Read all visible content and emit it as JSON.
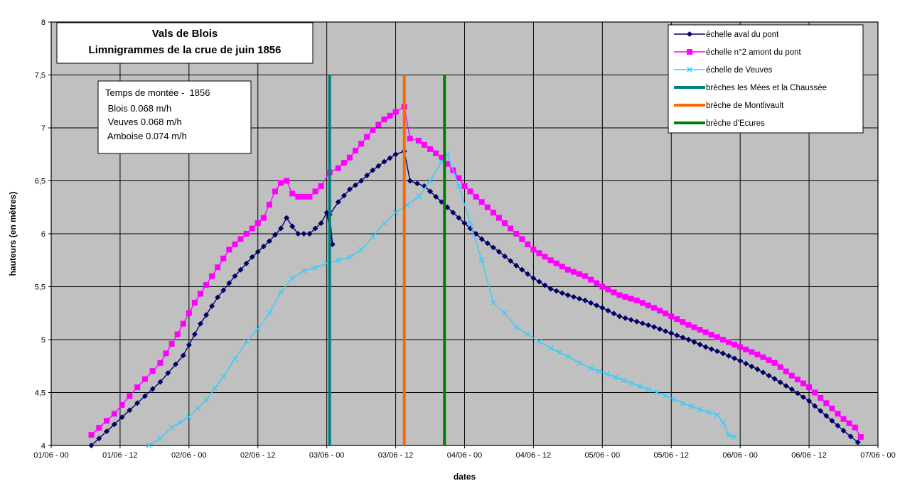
{
  "chart_data": {
    "type": "line",
    "title": [
      "Vals de Blois",
      "Limnigrammes de la crue de juin 1856"
    ],
    "info_box": [
      "Temps de montée -  1856",
      " Blois 0.068 m/h",
      " Veuves 0.068 m/h",
      " Amboise 0.074 m/h"
    ],
    "xlabel": "dates",
    "ylabel": "hauteurs (en mètres)",
    "x_unit": "hours since 01/06 - 00",
    "xlim": [
      0,
      144
    ],
    "ylim": [
      4,
      8
    ],
    "x_tick_labels": [
      "01/06 - 00",
      "01/06 - 12",
      "02/06 - 00",
      "02/06 - 12",
      "03/06 - 00",
      "03/06 - 12",
      "04/06 - 00",
      "04/06 - 12",
      "05/06 - 00",
      "05/06 - 12",
      "06/06 - 00",
      "06/06 - 12",
      "07/06 - 00"
    ],
    "y_tick_labels": [
      "4",
      "4,5",
      "5",
      "5,5",
      "6",
      "6,5",
      "7",
      "7,5",
      "8"
    ],
    "grid": true,
    "legend_position": "top-right",
    "series": [
      {
        "name": "échelle aval du pont",
        "color": "#000066",
        "marker": "diamond",
        "points": [
          [
            7,
            4.0
          ],
          [
            11,
            4.2
          ],
          [
            15,
            4.4
          ],
          [
            19,
            4.6
          ],
          [
            23,
            4.85
          ],
          [
            26,
            5.15
          ],
          [
            29,
            5.4
          ],
          [
            32,
            5.6
          ],
          [
            35,
            5.78
          ],
          [
            38,
            5.93
          ],
          [
            40,
            6.05
          ],
          [
            41,
            6.15
          ],
          [
            42,
            6.07
          ],
          [
            43,
            6.0
          ],
          [
            45,
            6.0
          ],
          [
            47,
            6.1
          ],
          [
            48,
            6.2
          ],
          [
            49,
            5.9
          ],
          [
            48.5,
            6.18
          ],
          [
            50,
            6.3
          ],
          [
            52,
            6.42
          ],
          [
            54,
            6.5
          ],
          [
            56,
            6.6
          ],
          [
            58,
            6.68
          ],
          [
            60,
            6.75
          ],
          [
            61.5,
            6.78
          ],
          [
            62.5,
            6.5
          ],
          [
            65,
            6.45
          ],
          [
            68,
            6.3
          ],
          [
            70,
            6.2
          ],
          [
            72,
            6.1
          ],
          [
            75,
            5.95
          ],
          [
            78,
            5.83
          ],
          [
            81,
            5.7
          ],
          [
            84,
            5.58
          ],
          [
            87,
            5.48
          ],
          [
            90,
            5.42
          ],
          [
            93,
            5.37
          ],
          [
            96,
            5.3
          ],
          [
            99,
            5.22
          ],
          [
            102,
            5.17
          ],
          [
            105,
            5.12
          ],
          [
            108,
            5.06
          ],
          [
            111,
            5.0
          ],
          [
            114,
            4.93
          ],
          [
            117,
            4.87
          ],
          [
            120,
            4.8
          ],
          [
            123,
            4.72
          ],
          [
            126,
            4.63
          ],
          [
            129,
            4.53
          ],
          [
            132,
            4.42
          ],
          [
            135,
            4.28
          ],
          [
            138,
            4.14
          ],
          [
            140.5,
            4.03
          ]
        ]
      },
      {
        "name": "échelle n°2 amont du pont",
        "color": "#ff00ff",
        "marker": "square",
        "points": [
          [
            7,
            4.1
          ],
          [
            11,
            4.3
          ],
          [
            15,
            4.55
          ],
          [
            19,
            4.78
          ],
          [
            22,
            5.05
          ],
          [
            25,
            5.35
          ],
          [
            28,
            5.6
          ],
          [
            31,
            5.85
          ],
          [
            34,
            6.0
          ],
          [
            37,
            6.15
          ],
          [
            39,
            6.4
          ],
          [
            40,
            6.48
          ],
          [
            41,
            6.5
          ],
          [
            42,
            6.38
          ],
          [
            43,
            6.35
          ],
          [
            45,
            6.35
          ],
          [
            47,
            6.45
          ],
          [
            48.5,
            6.58
          ],
          [
            50,
            6.62
          ],
          [
            52,
            6.72
          ],
          [
            54,
            6.85
          ],
          [
            56,
            6.98
          ],
          [
            58,
            7.08
          ],
          [
            60,
            7.15
          ],
          [
            61.5,
            7.2
          ],
          [
            62.5,
            6.9
          ],
          [
            64,
            6.88
          ],
          [
            66,
            6.8
          ],
          [
            68,
            6.72
          ],
          [
            70,
            6.6
          ],
          [
            72,
            6.45
          ],
          [
            75,
            6.3
          ],
          [
            78,
            6.15
          ],
          [
            81,
            6.0
          ],
          [
            84,
            5.85
          ],
          [
            87,
            5.75
          ],
          [
            90,
            5.66
          ],
          [
            93,
            5.6
          ],
          [
            96,
            5.5
          ],
          [
            99,
            5.42
          ],
          [
            102,
            5.37
          ],
          [
            105,
            5.3
          ],
          [
            108,
            5.22
          ],
          [
            111,
            5.14
          ],
          [
            114,
            5.07
          ],
          [
            117,
            5.0
          ],
          [
            120,
            4.93
          ],
          [
            123,
            4.86
          ],
          [
            126,
            4.78
          ],
          [
            129,
            4.66
          ],
          [
            132,
            4.55
          ],
          [
            135,
            4.4
          ],
          [
            138,
            4.25
          ],
          [
            140,
            4.17
          ],
          [
            141,
            4.08
          ]
        ]
      },
      {
        "name": "échelle de Veuves",
        "color": "#33ccff",
        "marker": "x",
        "points": [
          [
            17,
            4.0
          ],
          [
            19,
            4.07
          ],
          [
            21,
            4.17
          ],
          [
            24,
            4.27
          ],
          [
            27,
            4.43
          ],
          [
            30,
            4.65
          ],
          [
            32,
            4.82
          ],
          [
            34,
            4.98
          ],
          [
            36,
            5.1
          ],
          [
            38,
            5.25
          ],
          [
            40,
            5.45
          ],
          [
            42,
            5.58
          ],
          [
            44,
            5.65
          ],
          [
            46,
            5.68
          ],
          [
            48,
            5.72
          ],
          [
            50,
            5.75
          ],
          [
            52,
            5.78
          ],
          [
            54,
            5.85
          ],
          [
            56,
            5.97
          ],
          [
            58,
            6.1
          ],
          [
            60,
            6.2
          ],
          [
            62,
            6.27
          ],
          [
            64,
            6.35
          ],
          [
            66,
            6.5
          ],
          [
            68,
            6.68
          ],
          [
            69,
            6.75
          ],
          [
            71,
            6.45
          ],
          [
            73,
            6.1
          ],
          [
            75,
            5.75
          ],
          [
            77,
            5.35
          ],
          [
            79,
            5.25
          ],
          [
            81,
            5.12
          ],
          [
            83,
            5.05
          ],
          [
            85,
            4.98
          ],
          [
            87,
            4.92
          ],
          [
            90,
            4.84
          ],
          [
            92,
            4.78
          ],
          [
            94,
            4.73
          ],
          [
            104,
            4.53
          ],
          [
            107,
            4.47
          ],
          [
            110,
            4.4
          ],
          [
            113,
            4.34
          ],
          [
            116,
            4.29
          ],
          [
            117,
            4.22
          ],
          [
            118,
            4.1
          ],
          [
            119,
            4.08
          ]
        ]
      }
    ],
    "vertical_lines": [
      {
        "name": "brèches les Mées et la Chaussée",
        "color": "#008080",
        "x": 48.5
      },
      {
        "name": "brèche de Montlivault",
        "color": "#ff6600",
        "x": 61.5
      },
      {
        "name": "brèche d'Ecures",
        "color": "#008000",
        "x": 68.5
      }
    ],
    "vertical_line_top": 7.5
  },
  "colors": {
    "plot_bg": "#c0c0c0",
    "grid": "#000000",
    "page_bg": "#ffffff"
  }
}
